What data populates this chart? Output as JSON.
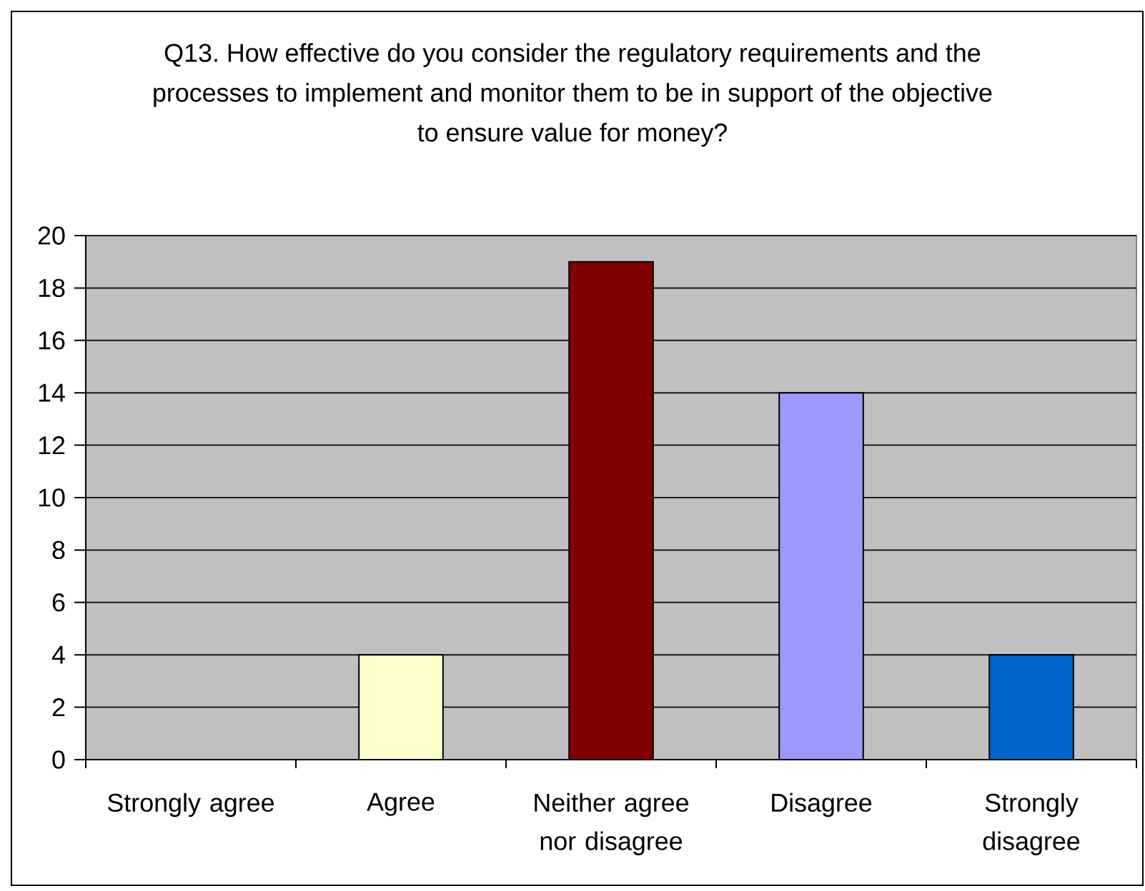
{
  "chart_data": {
    "type": "bar",
    "title": "Q13. How effective do you consider the regulatory requirements and the processes to implement and monitor them to be in support of the objective to ensure value for money?",
    "categories": [
      "Strongly agree",
      "Agree",
      "Neither agree nor disagree",
      "Disagree",
      "Strongly disagree"
    ],
    "values": [
      0,
      4,
      19,
      14,
      4
    ],
    "colors": [
      null,
      "#ffffcc",
      "#800000",
      "#9999ff",
      "#0066cc"
    ],
    "ylim": [
      0,
      20
    ],
    "yticks": [
      0,
      2,
      4,
      6,
      8,
      10,
      12,
      14,
      16,
      18,
      20
    ],
    "grid": "y"
  }
}
